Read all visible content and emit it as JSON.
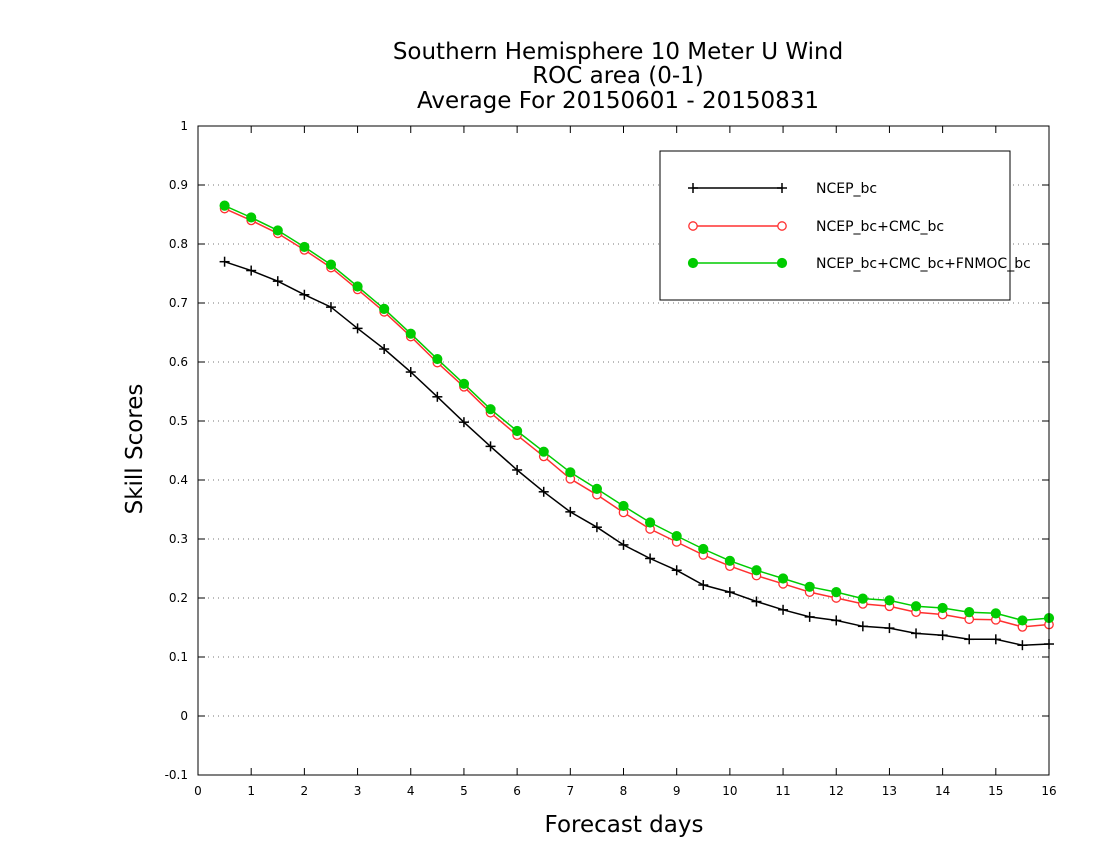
{
  "chart_data": {
    "type": "line",
    "title": [
      "Southern Hemisphere 10 Meter U Wind",
      "ROC area (0-1)",
      "Average For 20150601 - 20150831"
    ],
    "xlabel": "Forecast days",
    "ylabel": "Skill Scores",
    "xlim": [
      0,
      16
    ],
    "ylim": [
      -0.1,
      1
    ],
    "xticks": [
      "0",
      "1",
      "2",
      "3",
      "4",
      "5",
      "6",
      "7",
      "8",
      "9",
      "10",
      "11",
      "12",
      "13",
      "14",
      "15",
      "16"
    ],
    "yticks": [
      "-0.1",
      "0",
      "0.1",
      "0.2",
      "0.3",
      "0.4",
      "0.5",
      "0.6",
      "0.7",
      "0.8",
      "0.9",
      "1"
    ],
    "grid": "horizontal-dotted",
    "legend_position": "top-right",
    "x": [
      0.5,
      1,
      1.5,
      2,
      2.5,
      3,
      3.5,
      4,
      4.5,
      5,
      5.5,
      6,
      6.5,
      7,
      7.5,
      8,
      8.5,
      9,
      9.5,
      10,
      10.5,
      11,
      11.5,
      12,
      12.5,
      13,
      13.5,
      14,
      14.5,
      15,
      15.5,
      16
    ],
    "series": [
      {
        "name": "NCEP_bc",
        "color": "#000000",
        "marker": "plus",
        "values": [
          0.77,
          0.755,
          0.737,
          0.714,
          0.693,
          0.657,
          0.622,
          0.583,
          0.541,
          0.498,
          0.457,
          0.417,
          0.38,
          0.346,
          0.32,
          0.29,
          0.267,
          0.247,
          0.222,
          0.21,
          0.194,
          0.18,
          0.168,
          0.162,
          0.152,
          0.149,
          0.14,
          0.137,
          0.13,
          0.13,
          0.12,
          0.122
        ]
      },
      {
        "name": "NCEP_bc+CMC_bc",
        "color": "#ff3030",
        "marker": "open-circle",
        "values": [
          0.86,
          0.84,
          0.818,
          0.79,
          0.76,
          0.723,
          0.685,
          0.643,
          0.599,
          0.558,
          0.514,
          0.476,
          0.44,
          0.402,
          0.375,
          0.345,
          0.317,
          0.295,
          0.273,
          0.254,
          0.238,
          0.224,
          0.21,
          0.2,
          0.19,
          0.186,
          0.176,
          0.172,
          0.164,
          0.163,
          0.151,
          0.155
        ]
      },
      {
        "name": "NCEP_bc+CMC_bc+FNMOC_bc",
        "color": "#00cc00",
        "marker": "filled-circle",
        "values": [
          0.865,
          0.845,
          0.823,
          0.795,
          0.765,
          0.728,
          0.69,
          0.648,
          0.605,
          0.563,
          0.52,
          0.483,
          0.448,
          0.413,
          0.385,
          0.356,
          0.328,
          0.305,
          0.283,
          0.263,
          0.247,
          0.233,
          0.219,
          0.21,
          0.199,
          0.196,
          0.186,
          0.183,
          0.176,
          0.174,
          0.162,
          0.166
        ]
      }
    ]
  }
}
